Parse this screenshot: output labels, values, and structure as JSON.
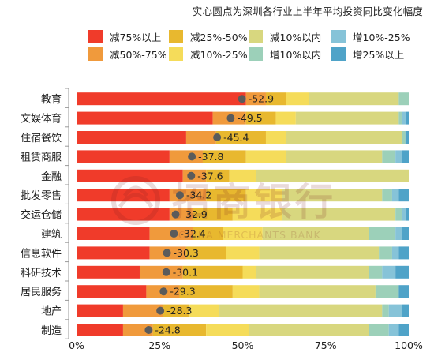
{
  "chart_data": {
    "type": "bar",
    "orientation": "horizontal",
    "stacked": true,
    "title": "实心圆点为深圳各行业上半年平均投资同比变化幅度",
    "xlim": [
      0,
      100
    ],
    "x_ticks": [
      "0%",
      "25%",
      "50%",
      "75%",
      "100%"
    ],
    "grid": false,
    "legend_position": "top",
    "categories": [
      "教育",
      "文娱体育",
      "住宿餐饮",
      "租赁商服",
      "金融",
      "批发零售",
      "交运仓储",
      "建筑",
      "信息软件",
      "科研技术",
      "居民服务",
      "地产",
      "制造"
    ],
    "series": [
      {
        "name": "减75%以上",
        "color": "#f03b2a",
        "values": [
          51,
          41,
          33,
          28,
          32,
          28,
          28,
          22,
          22,
          19,
          21,
          14,
          14
        ]
      },
      {
        "name": "减50%-75%",
        "color": "#f09a3c",
        "values": [
          6,
          10,
          9,
          10,
          7,
          11,
          7,
          13,
          11,
          13,
          10,
          12,
          9
        ]
      },
      {
        "name": "减25%-50%",
        "color": "#e8b82f",
        "values": [
          6,
          9,
          15,
          13,
          7,
          12,
          12,
          9,
          12,
          18,
          16,
          8,
          16
        ]
      },
      {
        "name": "减10%-25%",
        "color": "#f5dc5a",
        "values": [
          7,
          6,
          6,
          12,
          8,
          11,
          15,
          12,
          10,
          4,
          8,
          9,
          13
        ]
      },
      {
        "name": "减10%以内",
        "color": "#d8d77f",
        "values": [
          27,
          31,
          35,
          29,
          46,
          30,
          34,
          32,
          36,
          34,
          35,
          49,
          36
        ]
      },
      {
        "name": "增10%以内",
        "color": "#9cd0b9",
        "values": [
          3,
          1,
          1,
          4,
          0,
          3,
          2,
          8,
          4,
          4,
          7,
          2,
          6
        ]
      },
      {
        "name": "增10%-25%",
        "color": "#86c3d8",
        "values": [
          0,
          1,
          0,
          2,
          0,
          2,
          1,
          2,
          2,
          4,
          0,
          4,
          3
        ]
      },
      {
        "name": "增25%以上",
        "color": "#4fa3c8",
        "values": [
          0,
          1,
          1,
          2,
          0,
          3,
          1,
          2,
          3,
          4,
          3,
          2,
          3
        ]
      }
    ],
    "avg_change": [
      -52.9,
      -49.5,
      -45.4,
      -37.8,
      -37.6,
      -34.2,
      -32.9,
      -32.4,
      -30.3,
      -30.1,
      -29.3,
      -28.3,
      -24.8
    ],
    "avg_change_labels": [
      "-52.9",
      "-49.5",
      "-45.4",
      "-37.8",
      "-37.6",
      "-34.2",
      "-32.9",
      "-32.4",
      "-30.3",
      "-30.1",
      "-29.3",
      "-28.3",
      "-24.8"
    ],
    "watermark": {
      "text": "招商银行",
      "subtext": "CHINA MERCHANTS BANK"
    }
  }
}
